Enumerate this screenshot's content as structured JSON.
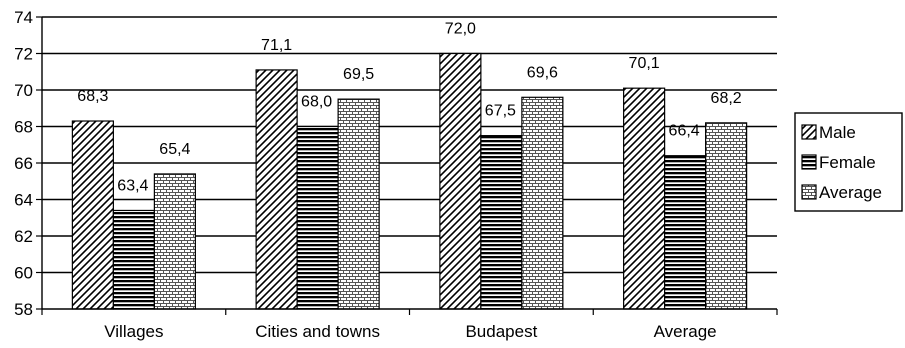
{
  "chart_data": {
    "type": "bar",
    "title": "",
    "xlabel": "",
    "ylabel": "",
    "categories": [
      "Villages",
      "Cities and towns",
      "Budapest",
      "Average"
    ],
    "series": [
      {
        "name": "Male",
        "values": [
          68.3,
          71.1,
          72.0,
          70.1
        ],
        "labels": [
          "68,3",
          "71,1",
          "72,0",
          "70,1"
        ],
        "pattern": "diagonal-hatch"
      },
      {
        "name": "Female",
        "values": [
          63.4,
          68.0,
          67.5,
          66.4
        ],
        "labels": [
          "63,4",
          "68,0",
          "67,5",
          "66,4"
        ],
        "pattern": "horizontal-lines"
      },
      {
        "name": "Average",
        "values": [
          65.4,
          69.5,
          69.6,
          68.2
        ],
        "labels": [
          "65,4",
          "69,5",
          "69,6",
          "68,2"
        ],
        "pattern": "brick"
      }
    ],
    "ylim": [
      58,
      74
    ],
    "yticks": [
      58,
      60,
      62,
      64,
      66,
      68,
      70,
      72,
      74
    ],
    "grid": true,
    "legend": "right"
  }
}
